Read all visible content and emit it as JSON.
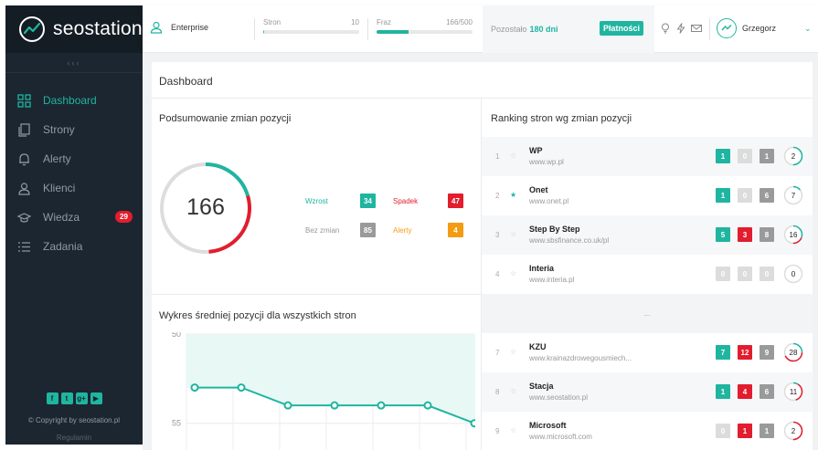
{
  "sidebar": {
    "logo": "seostation",
    "collapse": "‹‹‹",
    "items": [
      {
        "label": "Dashboard",
        "icon": "dashboard-icon"
      },
      {
        "label": "Strony",
        "icon": "pages-icon"
      },
      {
        "label": "Alerty",
        "icon": "bell-icon"
      },
      {
        "label": "Klienci",
        "icon": "clients-icon"
      },
      {
        "label": "Wiedza",
        "icon": "graduation-cap-icon",
        "badge": "29"
      },
      {
        "label": "Zadania",
        "icon": "tasks-list-icon"
      }
    ],
    "social": [
      "f",
      "t",
      "g+",
      "▶"
    ],
    "copyright": "© Copyright by seostation.pl",
    "terms": "Regulamin"
  },
  "topbar": {
    "plan": "Enterprise",
    "stron_label": "Stron",
    "stron_value": "10",
    "stron_fill": 0.01,
    "fraz_label": "Fraz",
    "fraz_value": "166/500",
    "fraz_fill": 0.33,
    "remain_label": "Pozostało",
    "remain_days": "180 dni",
    "pay_button": "Płatności",
    "user": "Grzegorz"
  },
  "dashboard": {
    "title": "Dashboard",
    "summary_title": "Podsumowanie zmian pozycji",
    "total": "166",
    "stats": [
      {
        "label": "Wzrost",
        "value": "34",
        "color": "#1fb5a0"
      },
      {
        "label": "Spadek",
        "value": "47",
        "color": "#e21d2e"
      },
      {
        "label": "Bez zmian",
        "value": "85",
        "color": "#9a9a9a"
      },
      {
        "label": "Alerty",
        "value": "4",
        "color": "#f39c12"
      }
    ],
    "chart_title": "Wykres średniej pozycji dla wszystkich stron"
  },
  "chart_data": {
    "type": "line",
    "title": "Wykres średniej pozycji dla wszystkich stron",
    "y_ticks": [
      "50",
      "55"
    ],
    "ylim": [
      50,
      56.5
    ],
    "y_reversed": true,
    "values": [
      53.0,
      53.0,
      54.0,
      54.0,
      54.0,
      54.0,
      55.0
    ],
    "grid": true
  },
  "ranking": {
    "title": "Ranking stron wg zmian pozycji",
    "gap": "...",
    "rows": [
      {
        "num": "1",
        "starred": false,
        "name": "WP",
        "url": "www.wp.pl",
        "up": "1",
        "down": "0",
        "same": "1",
        "total": "2",
        "ring_up": 0.5,
        "ring_down": 0
      },
      {
        "num": "2",
        "starred": true,
        "name": "Onet",
        "url": "www.onet.pl",
        "up": "1",
        "down": "0",
        "same": "6",
        "total": "7",
        "ring_up": 0.14,
        "ring_down": 0
      },
      {
        "num": "3",
        "starred": false,
        "name": "Step By Step",
        "url": "www.sbsfinance.co.uk/pl",
        "up": "5",
        "down": "3",
        "same": "8",
        "total": "16",
        "ring_up": 0.31,
        "ring_down": 0.19
      },
      {
        "num": "4",
        "starred": false,
        "name": "Interia",
        "url": "www.interia.pl",
        "up": "0",
        "down": "0",
        "same": "0",
        "total": "0",
        "ring_up": 0,
        "ring_down": 0
      },
      {
        "num": "7",
        "starred": false,
        "name": "KZU",
        "url": "www.krainazdrowegousmiech...",
        "up": "7",
        "down": "12",
        "same": "9",
        "total": "28",
        "ring_up": 0.25,
        "ring_down": 0.43
      },
      {
        "num": "8",
        "starred": false,
        "name": "Stacja",
        "url": "www.seostation.pl",
        "up": "1",
        "down": "4",
        "same": "6",
        "total": "11",
        "ring_up": 0.09,
        "ring_down": 0.36
      },
      {
        "num": "9",
        "starred": false,
        "name": "Microsoft",
        "url": "www.microsoft.com",
        "up": "0",
        "down": "1",
        "same": "1",
        "total": "2",
        "ring_up": 0,
        "ring_down": 0.5
      }
    ]
  },
  "colors": {
    "accent": "#1fb5a0",
    "danger": "#e21d2e",
    "neutral": "#9a9a9a",
    "warning": "#f39c12",
    "sidebar": "#1c2630"
  }
}
